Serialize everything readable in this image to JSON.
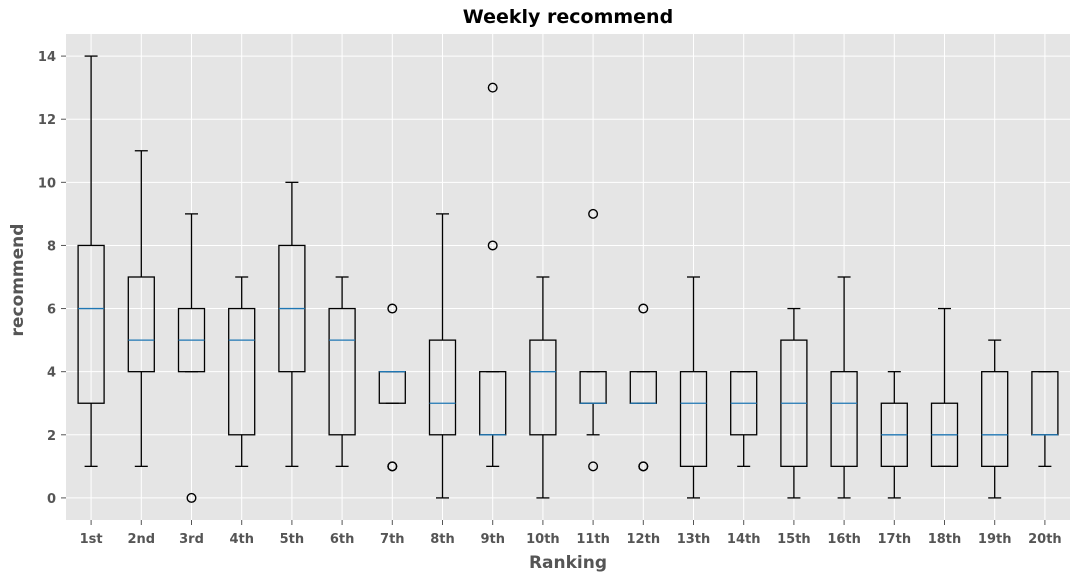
{
  "chart_data": {
    "type": "boxplot",
    "title": "Weekly recommend",
    "xlabel": "Ranking",
    "ylabel": "recommend",
    "ylim": [
      -0.7,
      14.7
    ],
    "yticks": [
      0,
      2,
      4,
      6,
      8,
      10,
      12,
      14
    ],
    "grid": true,
    "colors": {
      "background": "#e5e5e5",
      "grid": "#ffffff",
      "box": "#000000",
      "median": "#1f77b4",
      "tick_text": "#555555"
    },
    "categories": [
      "1st",
      "2nd",
      "3rd",
      "4th",
      "5th",
      "6th",
      "7th",
      "8th",
      "9th",
      "10th",
      "11th",
      "12th",
      "13th",
      "14th",
      "15th",
      "16th",
      "17th",
      "18th",
      "19th",
      "20th"
    ],
    "boxes": [
      {
        "whislo": 1,
        "q1": 3,
        "med": 6,
        "q3": 8,
        "whishi": 14,
        "fliers": []
      },
      {
        "whislo": 1,
        "q1": 4,
        "med": 5,
        "q3": 7,
        "whishi": 11,
        "fliers": []
      },
      {
        "whislo": 4,
        "q1": 4,
        "med": 5,
        "q3": 6,
        "whishi": 9,
        "fliers": [
          0
        ]
      },
      {
        "whislo": 1,
        "q1": 2,
        "med": 5,
        "q3": 6,
        "whishi": 7,
        "fliers": []
      },
      {
        "whislo": 1,
        "q1": 4,
        "med": 6,
        "q3": 8,
        "whishi": 10,
        "fliers": []
      },
      {
        "whislo": 1,
        "q1": 2,
        "med": 5,
        "q3": 6,
        "whishi": 7,
        "fliers": []
      },
      {
        "whislo": 3,
        "q1": 3,
        "med": 4,
        "q3": 4,
        "whishi": 4,
        "fliers": [
          6,
          1,
          1
        ]
      },
      {
        "whislo": 0,
        "q1": 2,
        "med": 3,
        "q3": 5,
        "whishi": 9,
        "fliers": []
      },
      {
        "whislo": 1,
        "q1": 2,
        "med": 2,
        "q3": 4,
        "whishi": 4,
        "fliers": [
          13,
          8
        ]
      },
      {
        "whislo": 0,
        "q1": 2,
        "med": 4,
        "q3": 5,
        "whishi": 7,
        "fliers": []
      },
      {
        "whislo": 2,
        "q1": 3,
        "med": 3,
        "q3": 4,
        "whishi": 4,
        "fliers": [
          9,
          1
        ]
      },
      {
        "whislo": 3,
        "q1": 3,
        "med": 3,
        "q3": 4,
        "whishi": 4,
        "fliers": [
          6,
          1,
          1
        ]
      },
      {
        "whislo": 0,
        "q1": 1,
        "med": 3,
        "q3": 4,
        "whishi": 7,
        "fliers": []
      },
      {
        "whislo": 1,
        "q1": 2,
        "med": 3,
        "q3": 4,
        "whishi": 4,
        "fliers": []
      },
      {
        "whislo": 0,
        "q1": 1,
        "med": 3,
        "q3": 5,
        "whishi": 6,
        "fliers": []
      },
      {
        "whislo": 0,
        "q1": 1,
        "med": 3,
        "q3": 4,
        "whishi": 7,
        "fliers": []
      },
      {
        "whislo": 0,
        "q1": 1,
        "med": 2,
        "q3": 3,
        "whishi": 4,
        "fliers": []
      },
      {
        "whislo": 1,
        "q1": 1,
        "med": 2,
        "q3": 3,
        "whishi": 6,
        "fliers": []
      },
      {
        "whislo": 0,
        "q1": 1,
        "med": 2,
        "q3": 4,
        "whishi": 5,
        "fliers": []
      },
      {
        "whislo": 1,
        "q1": 2,
        "med": 2,
        "q3": 4,
        "whishi": 4,
        "fliers": []
      }
    ]
  }
}
